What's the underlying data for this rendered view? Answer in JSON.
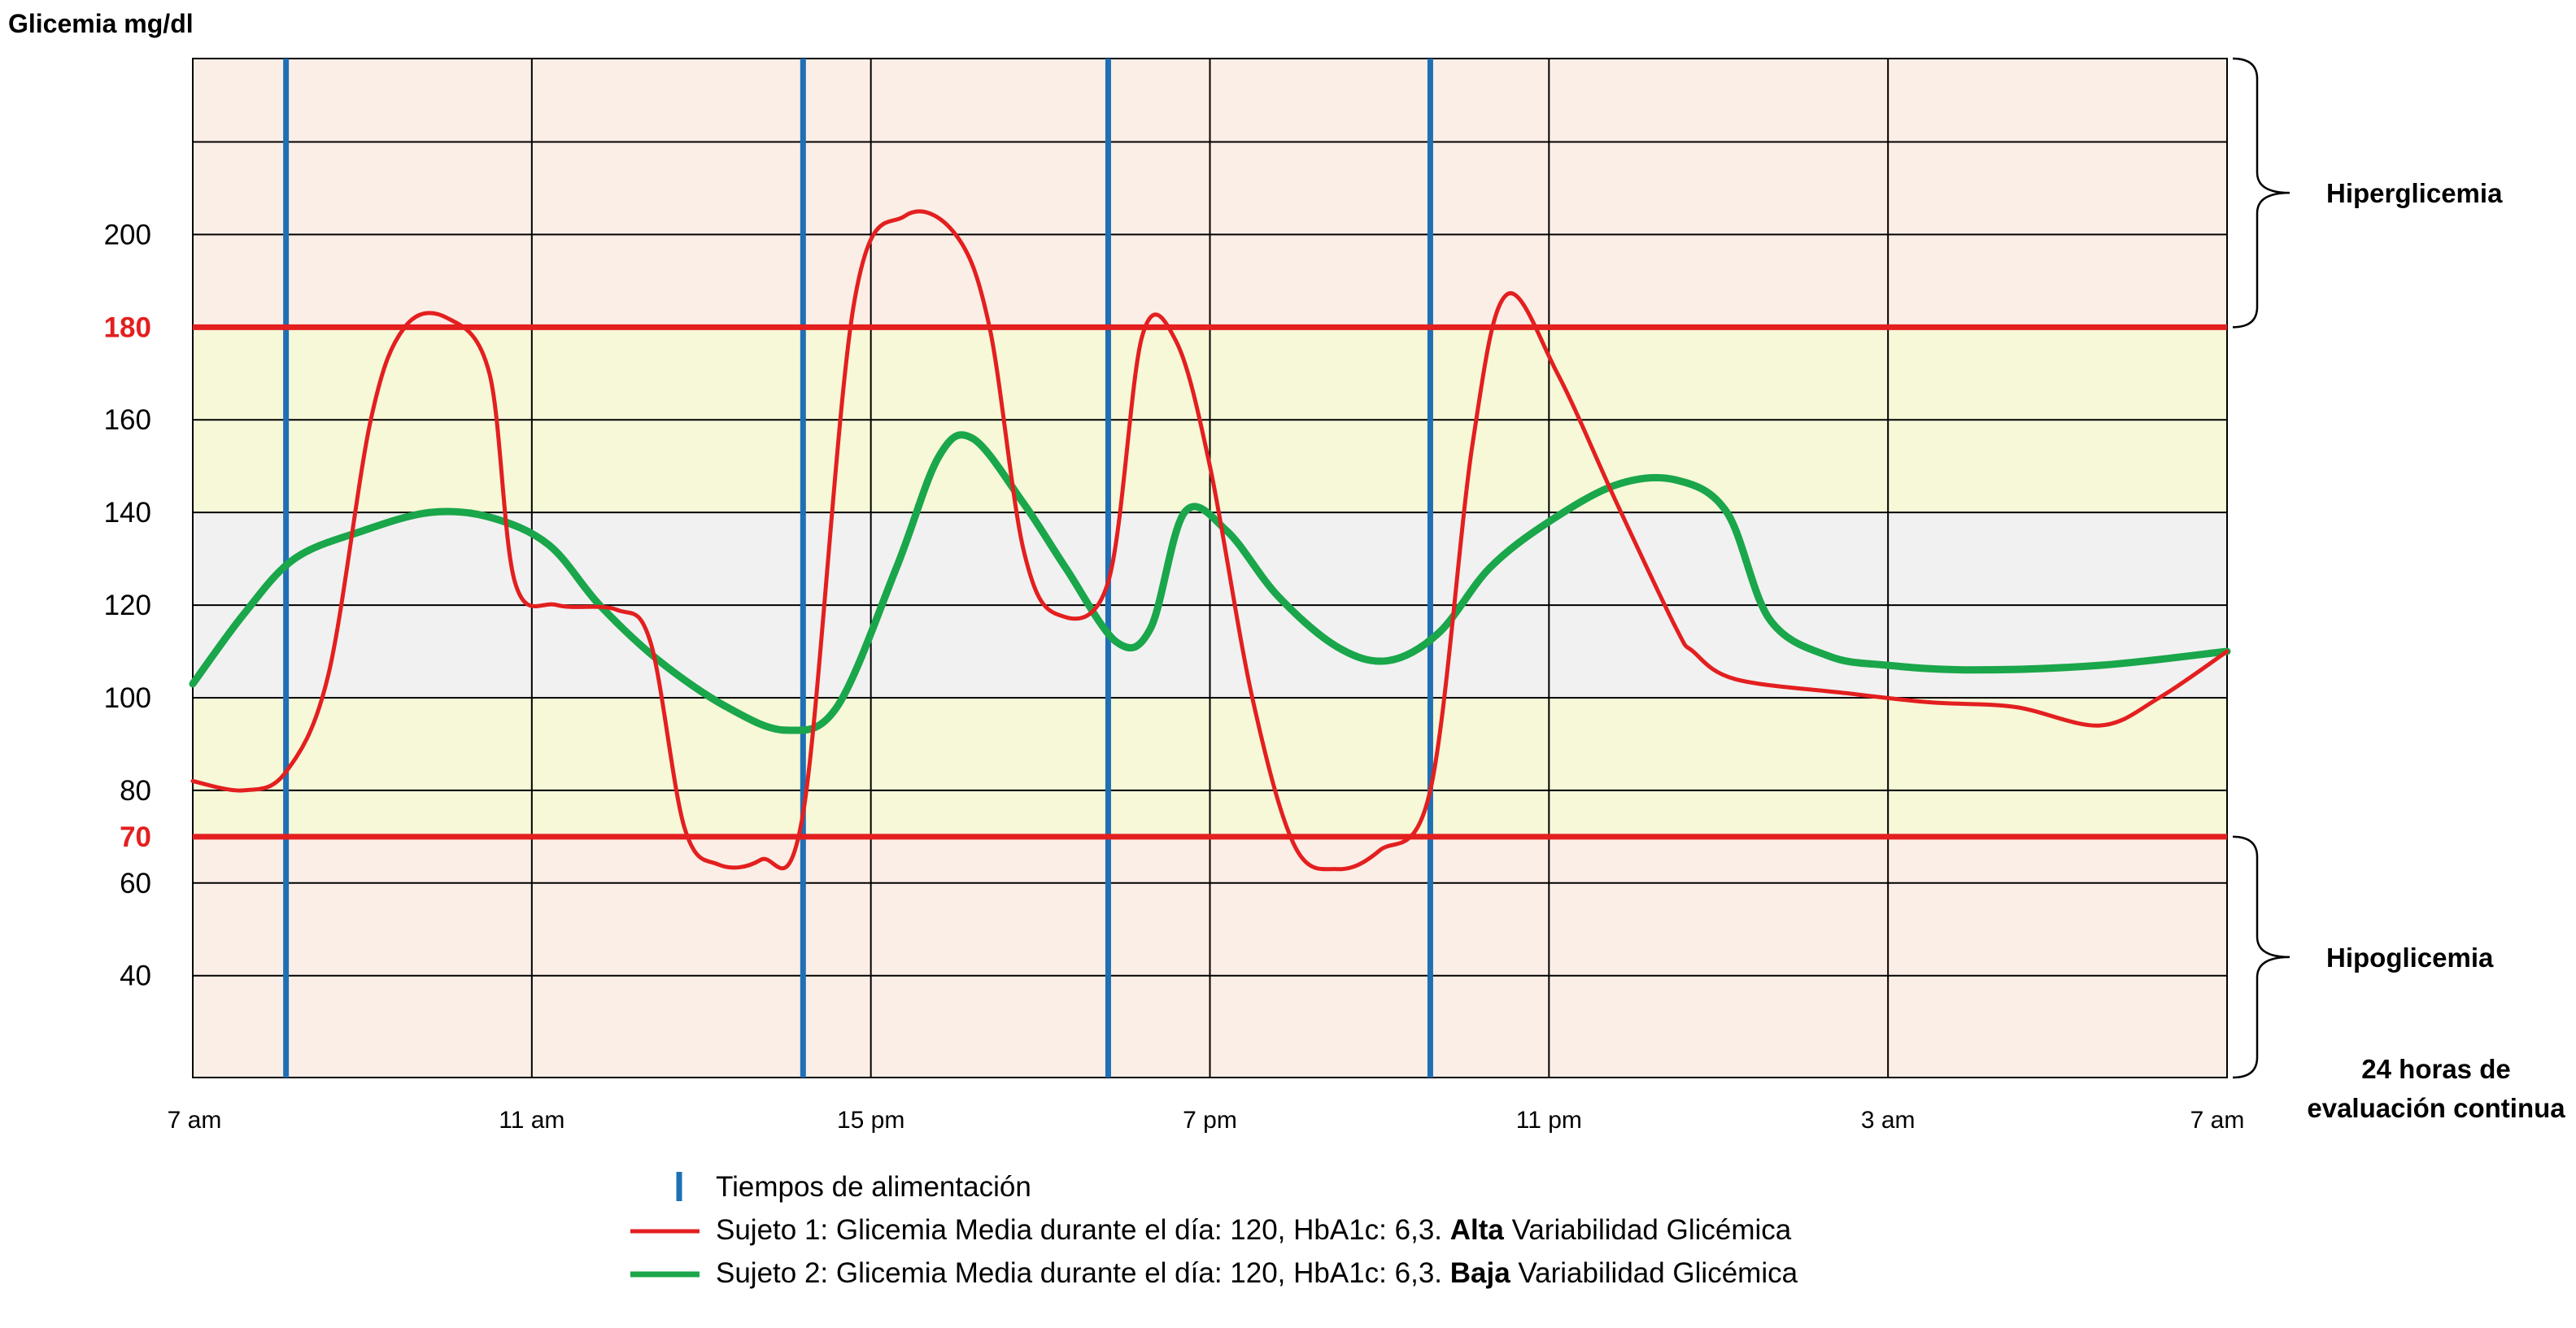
{
  "chart_data": {
    "type": "line",
    "ylabel": "Glicemia mg/dl",
    "ylim": [
      18,
      238
    ],
    "xlim": [
      0,
      24
    ],
    "y_ticks": [
      {
        "value": 40,
        "label": "40",
        "highlight": false
      },
      {
        "value": 60,
        "label": "60",
        "highlight": false
      },
      {
        "value": 70,
        "label": "70",
        "highlight": true
      },
      {
        "value": 80,
        "label": "80",
        "highlight": false
      },
      {
        "value": 100,
        "label": "100",
        "highlight": false
      },
      {
        "value": 120,
        "label": "120",
        "highlight": false
      },
      {
        "value": 140,
        "label": "140",
        "highlight": false
      },
      {
        "value": 160,
        "label": "160",
        "highlight": false
      },
      {
        "value": 180,
        "label": "180",
        "highlight": true
      },
      {
        "value": 200,
        "label": "200",
        "highlight": false
      }
    ],
    "y_gridlines": [
      40,
      60,
      80,
      100,
      120,
      140,
      160,
      200,
      220
    ],
    "x_ticks": [
      {
        "value": 0,
        "label": "7 am"
      },
      {
        "value": 4,
        "label": "11 am"
      },
      {
        "value": 8,
        "label": "15 pm"
      },
      {
        "value": 12,
        "label": "7 pm"
      },
      {
        "value": 16,
        "label": "11 pm"
      },
      {
        "value": 20,
        "label": "3 am"
      },
      {
        "value": 24,
        "label": "7 am"
      }
    ],
    "x_axis_title": [
      "24 horas de",
      "evaluación continua"
    ],
    "thresholds": [
      {
        "value": 180,
        "label": "180",
        "color": "#e31f1f"
      },
      {
        "value": 70,
        "label": "70",
        "color": "#e31f1f"
      }
    ],
    "bands": [
      {
        "from": 18,
        "to": 70,
        "color": "#fbeee6"
      },
      {
        "from": 70,
        "to": 100,
        "color": "#f6f8d8"
      },
      {
        "from": 100,
        "to": 140,
        "color": "#f1f1f1"
      },
      {
        "from": 140,
        "to": 180,
        "color": "#f6f8d8"
      },
      {
        "from": 180,
        "to": 238,
        "color": "#fbeee6"
      }
    ],
    "zones": [
      {
        "label": "Hiperglicemia",
        "from": 180,
        "to": 238
      },
      {
        "label": "Hipoglicemia",
        "from": 18,
        "to": 70
      }
    ],
    "meal_times": [
      1.1,
      7.2,
      10.8,
      14.6
    ],
    "meal_color": "#1f6fb5",
    "series": [
      {
        "name": "Sujeto 1",
        "color": "#e31f1f",
        "points": [
          [
            0,
            82
          ],
          [
            0.6,
            80
          ],
          [
            1.1,
            84
          ],
          [
            1.6,
            105
          ],
          [
            2.1,
            160
          ],
          [
            2.5,
            180
          ],
          [
            3.0,
            182
          ],
          [
            3.5,
            170
          ],
          [
            3.8,
            125
          ],
          [
            4.3,
            120
          ],
          [
            5.0,
            119
          ],
          [
            5.4,
            112
          ],
          [
            5.8,
            72
          ],
          [
            6.2,
            64
          ],
          [
            6.7,
            65
          ],
          [
            7.2,
            75
          ],
          [
            7.8,
            185
          ],
          [
            8.4,
            204
          ],
          [
            9.0,
            200
          ],
          [
            9.4,
            180
          ],
          [
            9.8,
            132
          ],
          [
            10.2,
            118
          ],
          [
            10.8,
            125
          ],
          [
            11.2,
            178
          ],
          [
            11.6,
            177
          ],
          [
            12.0,
            150
          ],
          [
            12.5,
            100
          ],
          [
            13.0,
            68
          ],
          [
            13.5,
            63
          ],
          [
            14.0,
            67
          ],
          [
            14.6,
            80
          ],
          [
            15.1,
            155
          ],
          [
            15.5,
            187
          ],
          [
            16.1,
            170
          ],
          [
            16.8,
            142
          ],
          [
            17.5,
            115
          ],
          [
            17.7,
            110
          ],
          [
            18.2,
            104
          ],
          [
            19.5,
            101
          ],
          [
            20.5,
            99
          ],
          [
            21.5,
            98
          ],
          [
            22.5,
            94
          ],
          [
            23.2,
            100
          ],
          [
            24,
            110
          ]
        ]
      },
      {
        "name": "Sujeto 2",
        "color": "#1aa64a",
        "points": [
          [
            0,
            103
          ],
          [
            0.6,
            118
          ],
          [
            1.2,
            130
          ],
          [
            2.0,
            136
          ],
          [
            2.8,
            140
          ],
          [
            3.5,
            139
          ],
          [
            4.2,
            133
          ],
          [
            4.8,
            120
          ],
          [
            5.5,
            108
          ],
          [
            6.3,
            98
          ],
          [
            7.0,
            93
          ],
          [
            7.6,
            98
          ],
          [
            8.3,
            128
          ],
          [
            8.8,
            152
          ],
          [
            9.2,
            156
          ],
          [
            9.8,
            142
          ],
          [
            10.3,
            128
          ],
          [
            10.9,
            112
          ],
          [
            11.3,
            115
          ],
          [
            11.7,
            140
          ],
          [
            12.2,
            136
          ],
          [
            12.8,
            122
          ],
          [
            13.5,
            111
          ],
          [
            14.1,
            108
          ],
          [
            14.7,
            114
          ],
          [
            15.3,
            128
          ],
          [
            16.0,
            138
          ],
          [
            16.8,
            146
          ],
          [
            17.5,
            147
          ],
          [
            18.1,
            140
          ],
          [
            18.6,
            117
          ],
          [
            19.3,
            109
          ],
          [
            20.0,
            107
          ],
          [
            21.0,
            106
          ],
          [
            22.5,
            107
          ],
          [
            24,
            110
          ]
        ]
      }
    ]
  },
  "legend": [
    {
      "kind": "meal",
      "color": "#1f6fb5",
      "parts": [
        {
          "text": "Tiempos de alimentación",
          "bold": false
        }
      ]
    },
    {
      "kind": "line",
      "color": "#e31f1f",
      "parts": [
        {
          "text": "Sujeto 1: Glicemia Media durante el día: 120, HbA1c: 6,3. ",
          "bold": false
        },
        {
          "text": "Alta",
          "bold": true
        },
        {
          "text": " Variabilidad Glicémica",
          "bold": false
        }
      ]
    },
    {
      "kind": "line",
      "color": "#1aa64a",
      "parts": [
        {
          "text": "Sujeto 2: Glicemia Media durante el día: 120, HbA1c: 6,3. ",
          "bold": false
        },
        {
          "text": "Baja",
          "bold": true
        },
        {
          "text": "  Variabilidad Glicémica",
          "bold": false
        }
      ]
    }
  ]
}
